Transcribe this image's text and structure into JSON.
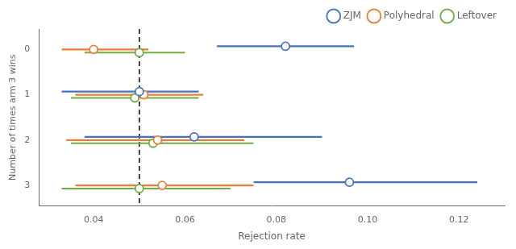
{
  "chart_data": {
    "type": "interval",
    "xlabel": "Rejection rate",
    "ylabel": "Number of times arm 3 wins",
    "y": [
      0,
      1,
      2,
      3
    ],
    "series": [
      {
        "name": "ZJM",
        "color": "#4472C4",
        "marker": "open_circle",
        "values": [
          0.082,
          0.05,
          0.062,
          0.096
        ],
        "lo": [
          0.067,
          0.033,
          0.038,
          0.075
        ],
        "hi": [
          0.097,
          0.063,
          0.09,
          0.124
        ]
      },
      {
        "name": "Polyhedral",
        "color": "#ED7D31",
        "marker": "open_circle",
        "values": [
          0.04,
          0.051,
          0.054,
          0.055
        ],
        "lo": [
          0.033,
          0.036,
          0.034,
          0.036
        ],
        "hi": [
          0.052,
          0.064,
          0.073,
          0.075
        ]
      },
      {
        "name": "Leftover",
        "color": "#70AD47",
        "marker": "open_circle",
        "values": [
          0.05,
          0.049,
          0.053,
          0.05
        ],
        "lo": [
          0.038,
          0.035,
          0.035,
          0.033
        ],
        "hi": [
          0.06,
          0.063,
          0.075,
          0.07
        ]
      }
    ],
    "xlim": [
      0.028,
      0.13
    ],
    "xticks": [
      0.04,
      0.06,
      0.08,
      {
        "value": 0.1,
        "label": "0.10"
      },
      0.12
    ],
    "ylim": [
      3.45,
      -0.45
    ],
    "yticks": [
      0,
      1,
      2,
      3
    ],
    "grid": false,
    "legend": "upper right",
    "reference_line": {
      "x": 0.05,
      "color": "#000000",
      "line_style": "dashed"
    }
  }
}
